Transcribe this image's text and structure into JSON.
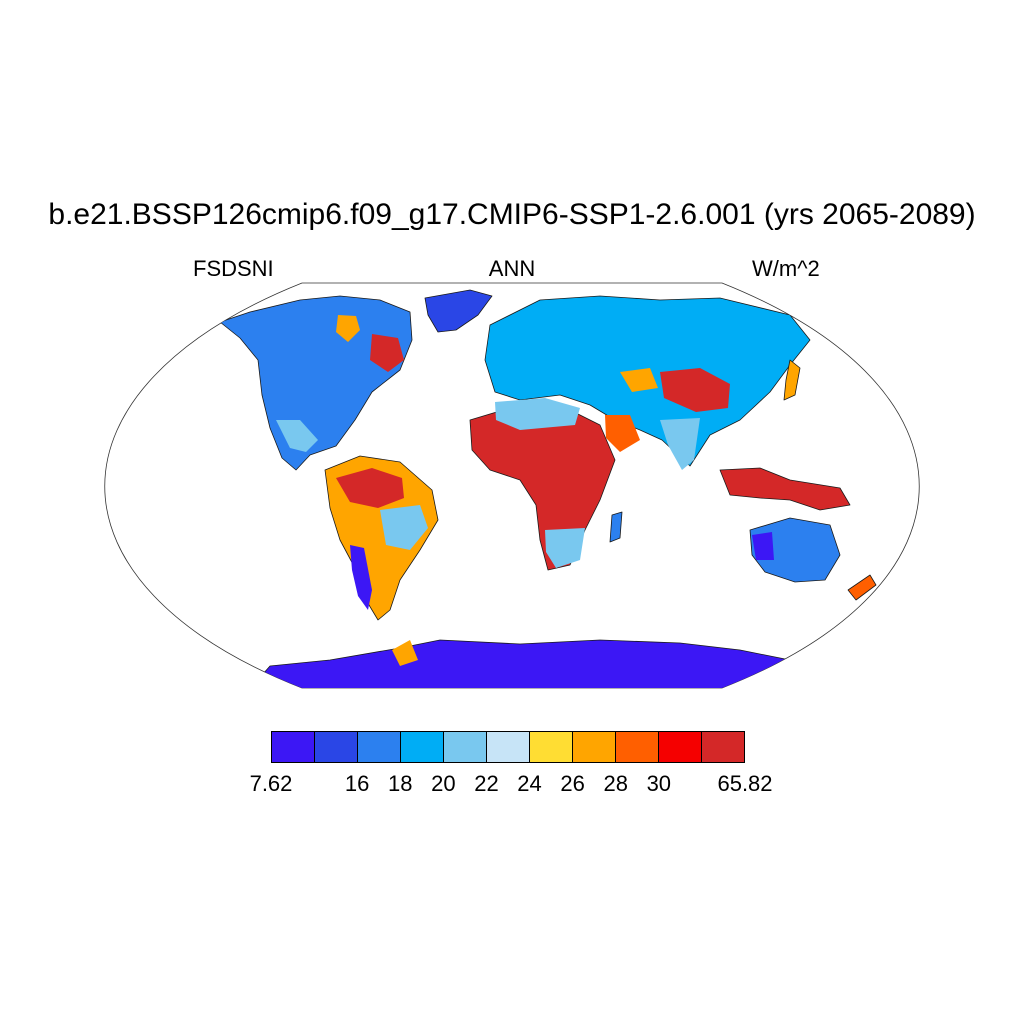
{
  "title": "b.e21.BSSP126cmip6.f09_g17.CMIP6-SSP1-2.6.001 (yrs 2065-2089)",
  "subtitle_left": "FSDSNI",
  "subtitle_center": "ANN",
  "subtitle_right": "W/m^2",
  "colorbar": {
    "colors": [
      "#3c17f5",
      "#2a46e6",
      "#2c80ef",
      "#00adf5",
      "#79c8ef",
      "#c7e4f7",
      "#ffdd33",
      "#ffa500",
      "#ff5f00",
      "#f50000",
      "#d42828"
    ],
    "labels": [
      {
        "text": "7.62",
        "boundary": 0
      },
      {
        "text": "16",
        "boundary": 2
      },
      {
        "text": "18",
        "boundary": 3
      },
      {
        "text": "20",
        "boundary": 4
      },
      {
        "text": "22",
        "boundary": 5
      },
      {
        "text": "24",
        "boundary": 6
      },
      {
        "text": "26",
        "boundary": 7
      },
      {
        "text": "28",
        "boundary": 8
      },
      {
        "text": "30",
        "boundary": 9
      },
      {
        "text": "65.82",
        "boundary": 11
      }
    ]
  }
}
